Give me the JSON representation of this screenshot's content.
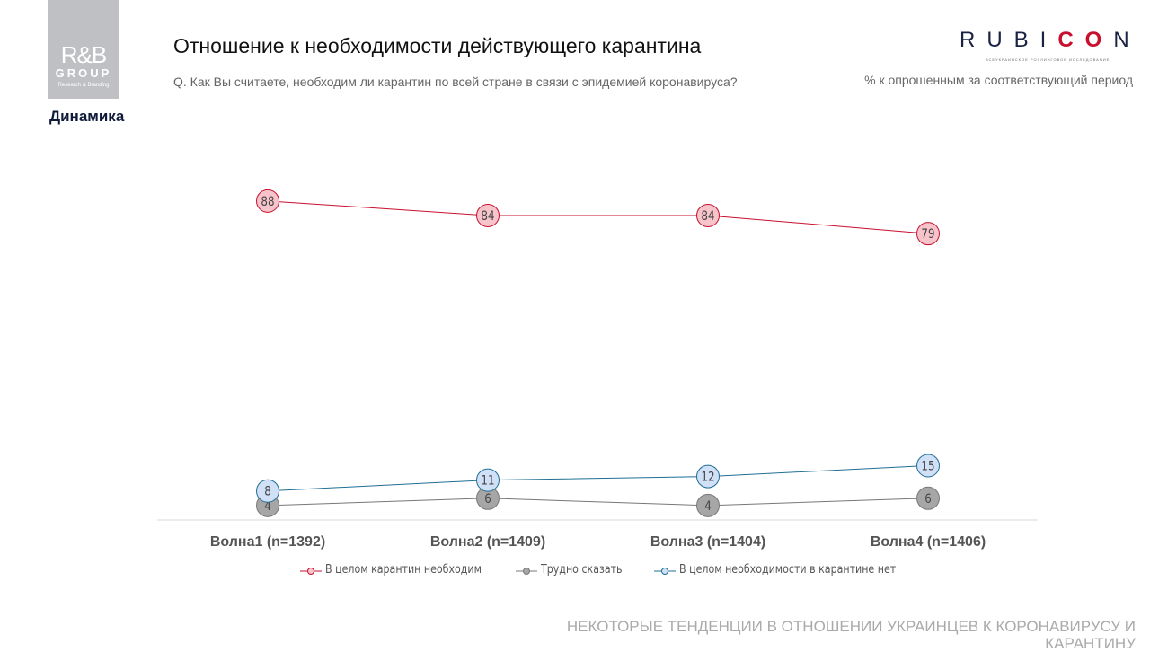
{
  "logo": {
    "text": "R&B GROUP Research & Branding"
  },
  "section": "Динамика",
  "title": "Отношение к необходимости действующего карантина",
  "question": "Q. Как Вы считаете, необходим ли карантин по всей стране в связи с эпидемией коронавируса?",
  "rubicon": {
    "text": "RUBICON",
    "subtitle": "ВСЕУКРАИНСКОЕ РОЛЛИНГОВОЕ ИССЛЕДОВАНИЕ"
  },
  "unit_note": "% к опрошенным за соответствующий период",
  "footer": "НЕКОТОРЫЕ ТЕНДЕНЦИИ В ОТНОШЕНИИ УКРАИНЦЕВ К КОРОНАВИРУСУ И КАРАНТИНУ",
  "chart_data": {
    "type": "line",
    "categories": [
      "Волна1 (n=1392)",
      "Волна2 (n=1409)",
      "Волна3 (n=1404)",
      "Волна4 (n=1406)"
    ],
    "series": [
      {
        "name": "В целом карантин необходим",
        "values": [
          88,
          84,
          84,
          79
        ],
        "line": "#c8102e",
        "fill": "#f7c4cb"
      },
      {
        "name": "Трудно сказать",
        "values": [
          4,
          6,
          4,
          6
        ],
        "line": "#777777",
        "fill": "#a6a6a6"
      },
      {
        "name": "В целом необходимости в карантине нет",
        "values": [
          8,
          11,
          12,
          15
        ],
        "line": "#1f6f94",
        "fill": "#cfe0f7"
      }
    ],
    "ylim": [
      0,
      100
    ],
    "grid": false,
    "legend": "bottom",
    "data_labels": true
  }
}
